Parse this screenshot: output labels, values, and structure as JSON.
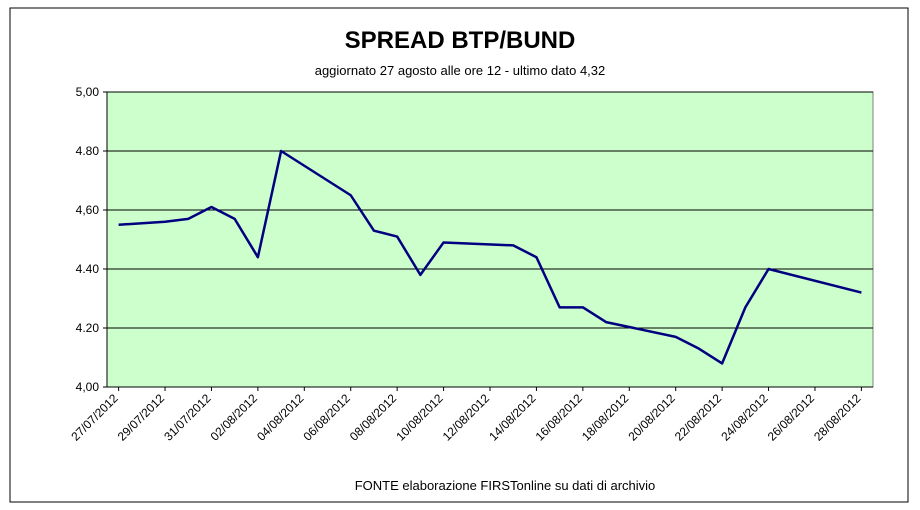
{
  "chart_data": {
    "type": "line",
    "title": "SPREAD  BTP/BUND",
    "subtitle": "aggiornato 27 agosto alle ore 12  -  ultimo dato 4,32",
    "source": "FONTE elaborazione FIRSTonline su dati di archivio",
    "x": [
      "27/07/2012",
      "29/07/2012",
      "30/07/2012",
      "31/07/2012",
      "01/08/2012",
      "02/08/2012",
      "03/08/2012",
      "06/08/2012",
      "07/08/2012",
      "08/08/2012",
      "09/08/2012",
      "10/08/2012",
      "13/08/2012",
      "14/08/2012",
      "15/08/2012",
      "16/08/2012",
      "17/08/2012",
      "20/08/2012",
      "21/08/2012",
      "22/08/2012",
      "23/08/2012",
      "24/08/2012",
      "28/08/2012"
    ],
    "series": [
      {
        "name": "Spread BTP/Bund",
        "color": "#000080",
        "values": [
          4.55,
          4.56,
          4.57,
          4.61,
          4.57,
          4.44,
          4.8,
          4.65,
          4.53,
          4.51,
          4.38,
          4.49,
          4.48,
          4.44,
          4.27,
          4.27,
          4.22,
          4.17,
          4.13,
          4.08,
          4.27,
          4.4,
          4.32
        ]
      }
    ],
    "xlim": [
      "27/07/2012",
      "28/08/2012"
    ],
    "xticks": [
      "27/07/2012",
      "29/07/2012",
      "31/07/2012",
      "02/08/2012",
      "04/08/2012",
      "06/08/2012",
      "08/08/2012",
      "10/08/2012",
      "12/08/2012",
      "14/08/2012",
      "16/08/2012",
      "18/08/2012",
      "20/08/2012",
      "22/08/2012",
      "24/08/2012",
      "26/08/2012",
      "28/08/2012"
    ],
    "ylim": [
      4.0,
      5.0
    ],
    "yticks": [
      {
        "value": 4.0,
        "label": "4,00"
      },
      {
        "value": 4.2,
        "label": "4.20"
      },
      {
        "value": 4.4,
        "label": "4.40"
      },
      {
        "value": 4.6,
        "label": "4,60"
      },
      {
        "value": 4.8,
        "label": "4.80"
      },
      {
        "value": 5.0,
        "label": "5,00"
      }
    ],
    "grid": true
  }
}
